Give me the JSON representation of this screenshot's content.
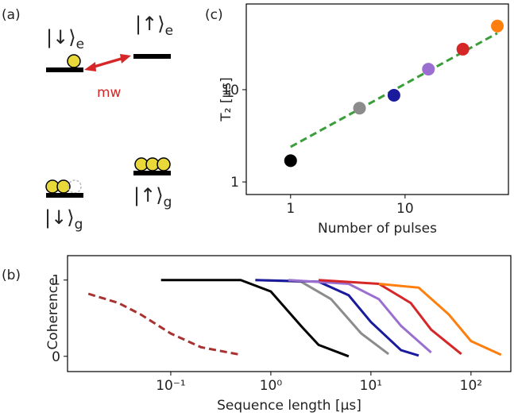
{
  "diagram": {
    "label": "(a)",
    "states": [
      {
        "ket": "|↓⟩",
        "sub": "e"
      },
      {
        "ket": "|↑⟩",
        "sub": "e"
      },
      {
        "ket": "|↓⟩",
        "sub": "g"
      },
      {
        "ket": "|↑⟩",
        "sub": "g"
      }
    ],
    "transition": "mw"
  },
  "chart_data": [
    {
      "type": "line",
      "panel_label": "(b)",
      "x_label": "Sequence length [μs]",
      "y_label": "Coherence",
      "log_x": true,
      "xlim": [
        0.0093,
        250
      ],
      "ylim": [
        -0.2,
        1.32
      ],
      "xticks": [
        {
          "value": 0.1,
          "label": "10⁻¹"
        },
        {
          "value": 1,
          "label": "10⁰"
        },
        {
          "value": 10,
          "label": "10¹"
        },
        {
          "value": 100,
          "label": "10²"
        }
      ],
      "yticks": [
        0,
        1
      ],
      "series": [
        {
          "color": "#a83232",
          "dashed": true,
          "x": [
            0.015,
            0.03,
            0.05,
            0.1,
            0.2,
            0.5
          ],
          "values": [
            0.82,
            0.7,
            0.55,
            0.3,
            0.12,
            0.02
          ]
        },
        {
          "color": "#000000",
          "x": [
            0.08,
            0.5,
            1,
            2,
            3,
            6
          ],
          "values": [
            1.0,
            1.0,
            0.85,
            0.4,
            0.15,
            0.0
          ]
        },
        {
          "color": "#8c8c8c",
          "x": [
            0.7,
            2,
            4,
            8,
            15
          ],
          "values": [
            1.0,
            0.98,
            0.75,
            0.3,
            0.03
          ]
        },
        {
          "color": "#1a1a9c",
          "x": [
            0.7,
            3,
            6,
            10,
            20,
            30
          ],
          "values": [
            1.0,
            0.98,
            0.8,
            0.45,
            0.08,
            0.01
          ]
        },
        {
          "color": "#9a6fd0",
          "x": [
            1.5,
            6,
            12,
            20,
            40
          ],
          "values": [
            1.0,
            0.95,
            0.75,
            0.4,
            0.05
          ]
        },
        {
          "color": "#d62728",
          "x": [
            3,
            12,
            25,
            40,
            80
          ],
          "values": [
            1.0,
            0.95,
            0.7,
            0.35,
            0.03
          ]
        },
        {
          "color": "#ff7f0e",
          "x": [
            12,
            30,
            60,
            100,
            200
          ],
          "values": [
            0.95,
            0.9,
            0.55,
            0.2,
            0.02
          ]
        }
      ]
    },
    {
      "type": "scatter",
      "panel_label": "(c)",
      "x_label": "Number of pulses",
      "y_label": "T₂ [μs]",
      "log_x": true,
      "log_y": true,
      "xlim": [
        0.41,
        80
      ],
      "ylim": [
        0.73,
        85
      ],
      "xticks": [
        1,
        10
      ],
      "yticks": [
        1,
        10
      ],
      "x": [
        1,
        4,
        8,
        16,
        32,
        64
      ],
      "values": [
        1.7,
        6.3,
        8.7,
        16.7,
        27.5,
        49
      ],
      "colors": [
        "#000000",
        "#8c8c8c",
        "#1a1a9c",
        "#9a6fd0",
        "#d62728",
        "#ff7f0e"
      ],
      "fit": {
        "color": "#3a9e3a",
        "dashed": true,
        "x": [
          1,
          64
        ],
        "values": [
          2.4,
          41
        ]
      }
    }
  ]
}
